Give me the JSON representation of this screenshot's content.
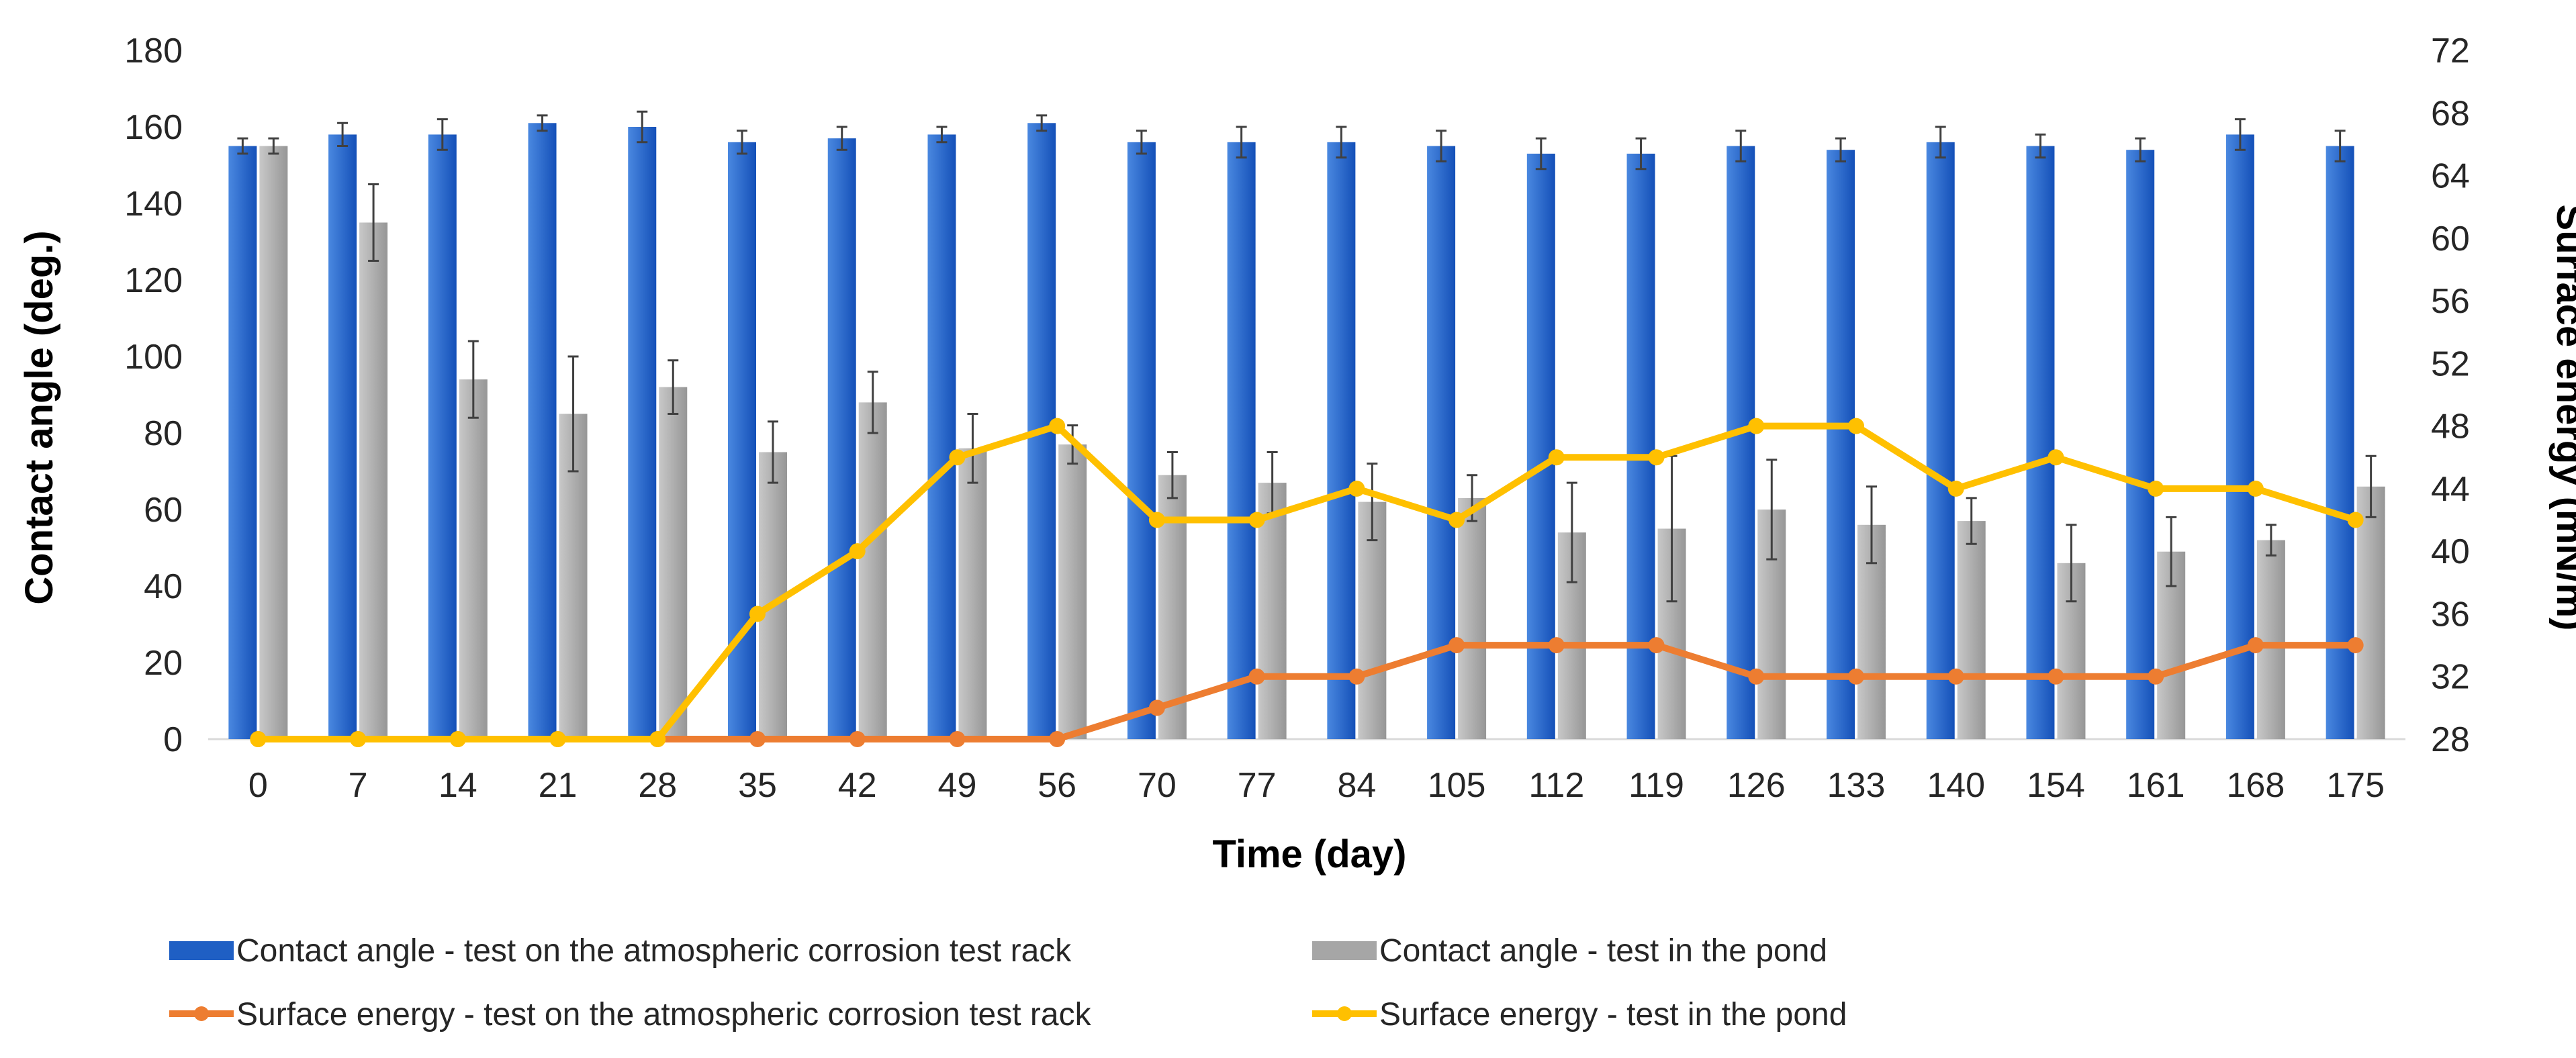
{
  "chart_data": {
    "type": "bar+line",
    "title": "",
    "xlabel": "Time (day)",
    "ylabel": "Contact angle (deg.)",
    "y2label": "Surface energy (mN/m)",
    "ylim": [
      0,
      180
    ],
    "y2lim": [
      28,
      72
    ],
    "yticks": [
      0,
      20,
      40,
      60,
      80,
      100,
      120,
      140,
      160,
      180
    ],
    "y2ticks": [
      28,
      32,
      36,
      40,
      44,
      48,
      52,
      56,
      60,
      64,
      68,
      72
    ],
    "categories": [
      "0",
      "7",
      "14",
      "21",
      "28",
      "35",
      "42",
      "49",
      "56",
      "70",
      "77",
      "84",
      "105",
      "112",
      "119",
      "126",
      "133",
      "140",
      "154",
      "161",
      "168",
      "175"
    ],
    "bar_series": [
      {
        "name": "Contact angle - test on  the atmospheric corrosion test rack",
        "color": "#1f5fc4",
        "values": [
          155,
          158,
          158,
          161,
          160,
          156,
          157,
          158,
          161,
          156,
          156,
          156,
          155,
          153,
          153,
          155,
          154,
          156,
          155,
          154,
          158,
          155
        ],
        "errors": [
          2,
          3,
          4,
          2,
          4,
          3,
          3,
          2,
          2,
          3,
          4,
          4,
          4,
          4,
          4,
          4,
          3,
          4,
          3,
          3,
          4,
          4
        ]
      },
      {
        "name": "Contact angle - test in the pond",
        "color": "#a6a6a6",
        "values": [
          155,
          135,
          94,
          85,
          92,
          75,
          88,
          76,
          77,
          69,
          67,
          62,
          63,
          54,
          55,
          60,
          56,
          57,
          46,
          49,
          52,
          66
        ],
        "errors": [
          2,
          10,
          10,
          15,
          7,
          8,
          8,
          9,
          5,
          6,
          8,
          10,
          6,
          13,
          19,
          13,
          10,
          6,
          10,
          9,
          4,
          8
        ]
      }
    ],
    "line_series": [
      {
        "name": "Surface energy - test on the atmospheric corrosion test rack",
        "color": "#ed7d31",
        "axis": "right",
        "values": [
          28,
          28,
          28,
          28,
          28,
          28,
          28,
          28,
          28,
          30,
          32,
          32,
          34,
          34,
          34,
          32,
          32,
          32,
          32,
          32,
          34,
          34
        ]
      },
      {
        "name": "Surface energy - test in the pond",
        "color": "#ffc000",
        "axis": "right",
        "values": [
          28,
          28,
          28,
          28,
          28,
          36,
          40,
          46,
          48,
          42,
          42,
          44,
          42,
          46,
          46,
          48,
          48,
          44,
          46,
          44,
          44,
          42
        ]
      }
    ],
    "legend_position": "bottom"
  }
}
